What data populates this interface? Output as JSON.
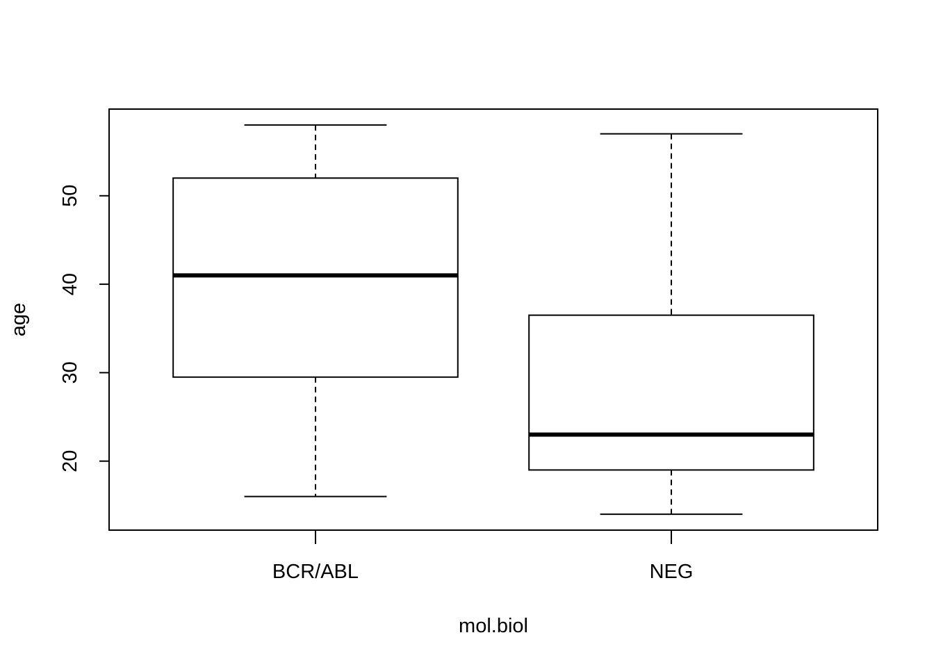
{
  "chart_data": {
    "type": "box",
    "xlabel": "mol.biol",
    "ylabel": "age",
    "categories": [
      "BCR/ABL",
      "NEG"
    ],
    "yticks": [
      20,
      30,
      40,
      50
    ],
    "ylim": [
      12.2,
      59.8
    ],
    "boxes": [
      {
        "category": "BCR/ABL",
        "min": 16,
        "q1": 29.5,
        "median": 41,
        "q3": 52,
        "max": 58
      },
      {
        "category": "NEG",
        "min": 14,
        "q1": 19,
        "median": 23,
        "q3": 36.5,
        "max": 57
      }
    ],
    "colors": {
      "line": "#000000",
      "background": "#ffffff"
    }
  }
}
